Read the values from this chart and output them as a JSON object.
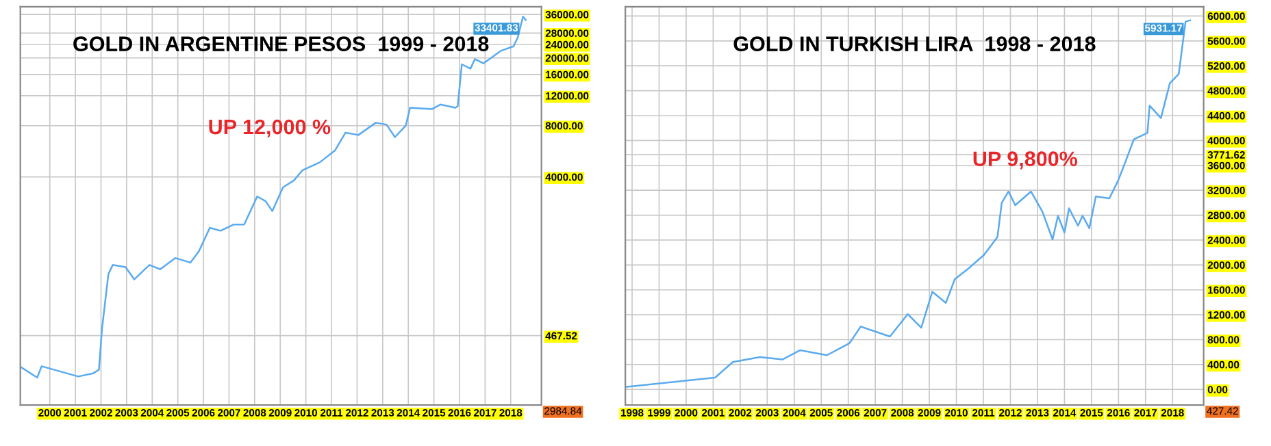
{
  "chart_data": [
    {
      "type": "line",
      "title": "GOLD IN ARGENTINE PESOS  1999 - 2018",
      "annotations": [
        "UP 12,000 %",
        "2984.84"
      ],
      "log": "y",
      "grid": true,
      "color": "#5aaaf0",
      "x": [
        1998.89,
        1999.51,
        1999.68,
        2000.44,
        2001.11,
        2001.7,
        2001.92,
        2002.04,
        2002.29,
        2002.46,
        2002.96,
        2003.3,
        2003.89,
        2004.31,
        2004.9,
        2005.49,
        2005.82,
        2006.25,
        2006.67,
        2007.17,
        2007.59,
        2008.1,
        2008.43,
        2008.69,
        2009.11,
        2009.53,
        2009.87,
        2010.54,
        2011.13,
        2011.55,
        2012.05,
        2012.73,
        2013.15,
        2013.48,
        2013.9,
        2014.07,
        2014.92,
        2015.25,
        2015.84,
        2015.93,
        2016.09,
        2016.43,
        2016.6,
        2016.94,
        2017.61,
        2018.11,
        2018.28,
        2018.48,
        2018.59
      ],
      "values": [
        304,
        265,
        309,
        287,
        269,
        281,
        295,
        514,
        1078,
        1216,
        1180,
        1000,
        1216,
        1147,
        1336,
        1255,
        1460,
        2010,
        1930,
        2100,
        2100,
        3070,
        2880,
        2520,
        3480,
        3810,
        4380,
        4870,
        5700,
        7280,
        7050,
        8330,
        8120,
        6850,
        8000,
        10200,
        10000,
        10650,
        10200,
        10400,
        18350,
        17300,
        19700,
        18600,
        22000,
        23400,
        26500,
        35000,
        33401.83
      ],
      "value_labels": [
        null,
        null,
        null,
        null,
        null,
        null,
        null,
        null,
        null,
        null,
        null,
        null,
        null,
        null,
        null,
        null,
        null,
        null,
        null,
        null,
        null,
        null,
        null,
        null,
        null,
        null,
        null,
        null,
        null,
        null,
        null,
        null,
        null,
        null,
        null,
        null,
        null,
        null,
        null,
        null,
        null,
        null,
        null,
        null,
        null,
        null,
        null,
        null,
        "33401.83"
      ],
      "xlim": [
        1998.85,
        2019.2
      ],
      "xticks": [
        2000,
        2001,
        2002,
        2003,
        2004,
        2005,
        2006,
        2007,
        2008,
        2009,
        2010,
        2011,
        2012,
        2013,
        2014,
        2015,
        2016,
        2017,
        2018
      ],
      "ylim": [
        183,
        40000
      ],
      "yticks": [
        {
          "value": 467.52,
          "label": "467.52"
        },
        {
          "value": 4000,
          "label": "4000.00"
        },
        {
          "value": 8000,
          "label": "8000.00"
        },
        {
          "value": 12000,
          "label": "12000.00"
        },
        {
          "value": 16000,
          "label": "16000.00"
        },
        {
          "value": 20000,
          "label": "20000.00"
        },
        {
          "value": 24000,
          "label": "24000.00"
        },
        {
          "value": 28000,
          "label": "28000.00"
        },
        {
          "value": 36000,
          "label": "36000.00"
        }
      ]
    },
    {
      "type": "line",
      "title": "GOLD IN TURKISH LIRA  1998 - 2018",
      "annotations": [
        "UP 9,800%",
        "427.42"
      ],
      "grid": true,
      "color": "#5aaaf0",
      "x": [
        1997.75,
        2001.07,
        2001.73,
        2002.73,
        2003.56,
        2004.22,
        2005.21,
        2006.04,
        2006.46,
        2007.54,
        2008.2,
        2008.7,
        2009.11,
        2009.61,
        2009.94,
        2010.44,
        2011.02,
        2011.52,
        2011.68,
        2011.93,
        2012.18,
        2012.76,
        2013.18,
        2013.56,
        2013.76,
        2014.0,
        2014.17,
        2014.5,
        2014.67,
        2014.92,
        2015.16,
        2015.66,
        2015.99,
        2016.24,
        2016.57,
        2017.07,
        2017.15,
        2017.57,
        2017.9,
        2018.23,
        2018.48,
        2018.65
      ],
      "values": [
        40,
        190,
        440,
        520,
        480,
        630,
        550,
        740,
        1010,
        850,
        1210,
        990,
        1570,
        1390,
        1770,
        1940,
        2160,
        2450,
        3000,
        3180,
        2960,
        3180,
        2860,
        2410,
        2790,
        2520,
        2910,
        2630,
        2790,
        2590,
        3100,
        3070,
        3360,
        3640,
        4020,
        4120,
        4560,
        4360,
        4920,
        5070,
        5910,
        5931.17
      ],
      "value_labels": [
        null,
        null,
        null,
        null,
        null,
        null,
        null,
        null,
        null,
        null,
        null,
        null,
        null,
        null,
        null,
        null,
        null,
        null,
        null,
        null,
        null,
        null,
        null,
        null,
        null,
        null,
        null,
        null,
        null,
        null,
        null,
        null,
        null,
        null,
        null,
        null,
        null,
        null,
        null,
        null,
        null,
        "5931.17"
      ],
      "xlim": [
        1997.75,
        2019.15
      ],
      "xticks": [
        1998,
        1999,
        2000,
        2001,
        2002,
        2003,
        2004,
        2005,
        2006,
        2007,
        2008,
        2009,
        2010,
        2011,
        2012,
        2013,
        2014,
        2015,
        2016,
        2017,
        2018
      ],
      "ylim": [
        -250,
        6150
      ],
      "yticks": [
        {
          "value": 0,
          "label": "0.00"
        },
        {
          "value": 400,
          "label": "400.00"
        },
        {
          "value": 800,
          "label": "800.00"
        },
        {
          "value": 1200,
          "label": "1200.00"
        },
        {
          "value": 1600,
          "label": "1600.00"
        },
        {
          "value": 2000,
          "label": "2000.00"
        },
        {
          "value": 2400,
          "label": "2400.00"
        },
        {
          "value": 2800,
          "label": "2800.00"
        },
        {
          "value": 3200,
          "label": "3200.00"
        },
        {
          "value": 3600,
          "label": "3600.00"
        },
        {
          "value": 3771.62,
          "label": "3771.62"
        },
        {
          "value": 4000,
          "label": "4000.00"
        },
        {
          "value": 4400,
          "label": "4400.00"
        },
        {
          "value": 4800,
          "label": "4800.00"
        },
        {
          "value": 5200,
          "label": "5200.00"
        },
        {
          "value": 5600,
          "label": "5600.00"
        },
        {
          "value": 6000,
          "label": "6000.00"
        }
      ]
    }
  ]
}
